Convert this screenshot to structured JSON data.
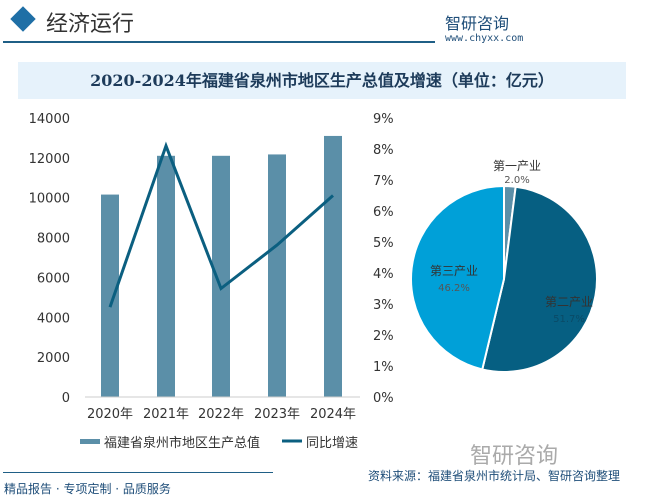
{
  "header": {
    "title": "经济运行",
    "logo": "智研咨询",
    "site": "www.chyxx.com"
  },
  "footer": {
    "tagline": "精品报告 · 专项定制 · 品质服务",
    "source": "资料来源：福建省泉州市统计局、智研咨询整理",
    "logo": "智研咨询"
  },
  "colors": {
    "bar": "#5b8fa8",
    "line": "#0b5f80",
    "pie": [
      "#5b8fa8",
      "#065f82",
      "#00a0d8"
    ]
  },
  "chart_data": [
    {
      "type": "bar",
      "title": "2020-2024年福建省泉州市地区生产总值及增速（单位：亿元）",
      "categories": [
        "2020年",
        "2021年",
        "2022年",
        "2023年",
        "2024年"
      ],
      "series": [
        {
          "name": "福建省泉州市地区生产总值",
          "type": "bar",
          "axis": "left",
          "values": [
            10158,
            12103,
            12103,
            12172,
            13100
          ]
        },
        {
          "name": "同比增速",
          "type": "line",
          "axis": "right",
          "values": [
            2.9,
            8.1,
            3.5,
            4.9,
            6.5
          ]
        }
      ],
      "ylim": [
        0,
        14000
      ],
      "yticks": [
        "0",
        "2000",
        "4000",
        "6000",
        "8000",
        "10000",
        "12000",
        "14000"
      ],
      "y2lim": [
        0,
        9
      ],
      "y2ticks": [
        "0%",
        "1%",
        "2%",
        "3%",
        "4%",
        "5%",
        "6%",
        "7%",
        "8%",
        "9%"
      ],
      "legend": "bottom"
    },
    {
      "type": "pie",
      "slices": [
        {
          "label": "第一产业",
          "value": 2.0,
          "text": "2.0%"
        },
        {
          "label": "第二产业",
          "value": 51.7,
          "text": "51.7%"
        },
        {
          "label": "第三产业",
          "value": 46.2,
          "text": "46.2%"
        }
      ]
    }
  ]
}
